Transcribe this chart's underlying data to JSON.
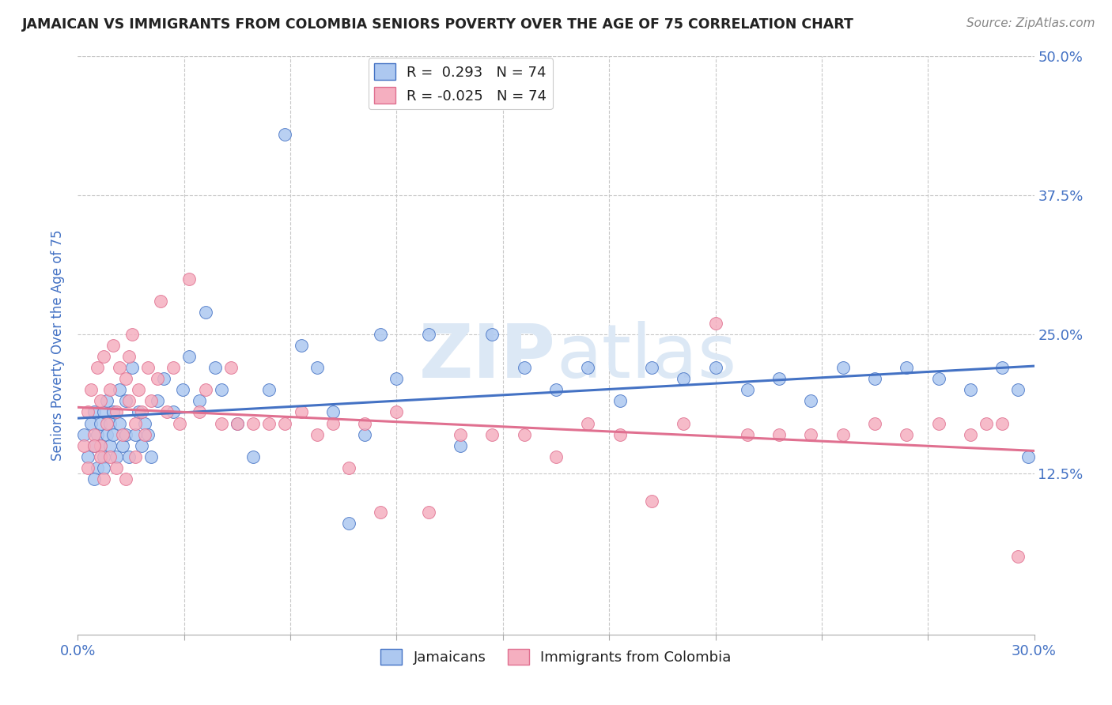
{
  "title": "JAMAICAN VS IMMIGRANTS FROM COLOMBIA SENIORS POVERTY OVER THE AGE OF 75 CORRELATION CHART",
  "source": "Source: ZipAtlas.com",
  "ylabel": "Seniors Poverty Over the Age of 75",
  "ylim": [
    -0.02,
    0.5
  ],
  "xlim": [
    0.0,
    0.3
  ],
  "yticks": [
    0.125,
    0.25,
    0.375,
    0.5
  ],
  "ytick_labels": [
    "12.5%",
    "25.0%",
    "37.5%",
    "50.0%"
  ],
  "legend_r_jamaicans": "R =  0.293",
  "legend_n_jamaicans": "N = 74",
  "legend_r_colombia": "R = -0.025",
  "legend_n_colombia": "N = 74",
  "color_jamaicans": "#adc8f0",
  "color_colombia": "#f5afc0",
  "color_line_jamaicans": "#4472c4",
  "color_line_colombia": "#e07090",
  "color_axis": "#4472c4",
  "color_title": "#222222",
  "watermark_color": "#dce8f5",
  "background_color": "#ffffff",
  "grid_color": "#c8c8c8",
  "jamaicans_x": [
    0.002,
    0.003,
    0.004,
    0.005,
    0.005,
    0.006,
    0.006,
    0.007,
    0.007,
    0.008,
    0.008,
    0.009,
    0.009,
    0.01,
    0.01,
    0.011,
    0.011,
    0.012,
    0.013,
    0.013,
    0.014,
    0.015,
    0.015,
    0.016,
    0.017,
    0.018,
    0.019,
    0.02,
    0.021,
    0.022,
    0.023,
    0.025,
    0.027,
    0.03,
    0.033,
    0.035,
    0.038,
    0.04,
    0.043,
    0.045,
    0.05,
    0.055,
    0.06,
    0.065,
    0.07,
    0.075,
    0.08,
    0.085,
    0.09,
    0.095,
    0.1,
    0.11,
    0.12,
    0.13,
    0.14,
    0.15,
    0.16,
    0.17,
    0.18,
    0.19,
    0.2,
    0.21,
    0.22,
    0.23,
    0.24,
    0.25,
    0.26,
    0.27,
    0.28,
    0.29,
    0.295,
    0.298,
    0.005,
    0.008
  ],
  "jamaicans_y": [
    0.16,
    0.14,
    0.17,
    0.15,
    0.18,
    0.13,
    0.16,
    0.17,
    0.15,
    0.14,
    0.18,
    0.16,
    0.19,
    0.15,
    0.17,
    0.16,
    0.18,
    0.14,
    0.17,
    0.2,
    0.15,
    0.16,
    0.19,
    0.14,
    0.22,
    0.16,
    0.18,
    0.15,
    0.17,
    0.16,
    0.14,
    0.19,
    0.21,
    0.18,
    0.2,
    0.23,
    0.19,
    0.27,
    0.22,
    0.2,
    0.17,
    0.14,
    0.2,
    0.43,
    0.24,
    0.22,
    0.18,
    0.08,
    0.16,
    0.25,
    0.21,
    0.25,
    0.15,
    0.25,
    0.22,
    0.2,
    0.22,
    0.19,
    0.22,
    0.21,
    0.22,
    0.2,
    0.21,
    0.19,
    0.22,
    0.21,
    0.22,
    0.21,
    0.2,
    0.22,
    0.2,
    0.14,
    0.12,
    0.13
  ],
  "colombia_x": [
    0.002,
    0.003,
    0.004,
    0.005,
    0.006,
    0.007,
    0.007,
    0.008,
    0.009,
    0.01,
    0.011,
    0.012,
    0.013,
    0.014,
    0.015,
    0.016,
    0.016,
    0.017,
    0.018,
    0.019,
    0.02,
    0.021,
    0.022,
    0.023,
    0.025,
    0.026,
    0.028,
    0.03,
    0.032,
    0.035,
    0.038,
    0.04,
    0.045,
    0.048,
    0.05,
    0.055,
    0.06,
    0.065,
    0.07,
    0.075,
    0.08,
    0.085,
    0.09,
    0.095,
    0.1,
    0.11,
    0.12,
    0.13,
    0.14,
    0.15,
    0.16,
    0.17,
    0.18,
    0.19,
    0.2,
    0.21,
    0.22,
    0.23,
    0.24,
    0.25,
    0.26,
    0.27,
    0.28,
    0.285,
    0.29,
    0.295,
    0.003,
    0.005,
    0.007,
    0.008,
    0.01,
    0.012,
    0.015,
    0.018
  ],
  "colombia_y": [
    0.15,
    0.18,
    0.2,
    0.16,
    0.22,
    0.19,
    0.15,
    0.23,
    0.17,
    0.2,
    0.24,
    0.18,
    0.22,
    0.16,
    0.21,
    0.19,
    0.23,
    0.25,
    0.17,
    0.2,
    0.18,
    0.16,
    0.22,
    0.19,
    0.21,
    0.28,
    0.18,
    0.22,
    0.17,
    0.3,
    0.18,
    0.2,
    0.17,
    0.22,
    0.17,
    0.17,
    0.17,
    0.17,
    0.18,
    0.16,
    0.17,
    0.13,
    0.17,
    0.09,
    0.18,
    0.09,
    0.16,
    0.16,
    0.16,
    0.14,
    0.17,
    0.16,
    0.1,
    0.17,
    0.26,
    0.16,
    0.16,
    0.16,
    0.16,
    0.17,
    0.16,
    0.17,
    0.16,
    0.17,
    0.17,
    0.05,
    0.13,
    0.15,
    0.14,
    0.12,
    0.14,
    0.13,
    0.12,
    0.14
  ]
}
